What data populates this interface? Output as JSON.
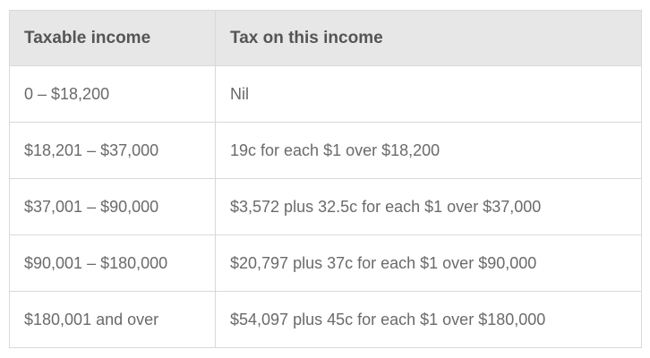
{
  "table": {
    "headers": [
      "Taxable income",
      "Tax on this income"
    ],
    "rows": [
      [
        "0 – $18,200",
        "Nil"
      ],
      [
        "$18,201 – $37,000",
        "19c for each $1 over $18,200"
      ],
      [
        "$37,001 – $90,000",
        "$3,572 plus 32.5c for each $1 over $37,000"
      ],
      [
        "$90,001 – $180,000",
        "$20,797 plus 37c for each $1 over $90,000"
      ],
      [
        "$180,001 and over",
        "$54,097 plus 45c for each $1 over $180,000"
      ]
    ]
  },
  "colors": {
    "header_background": "#e7e7e7",
    "header_text": "#555555",
    "cell_text": "#6a6a6a",
    "border": "#d9d9d9"
  }
}
